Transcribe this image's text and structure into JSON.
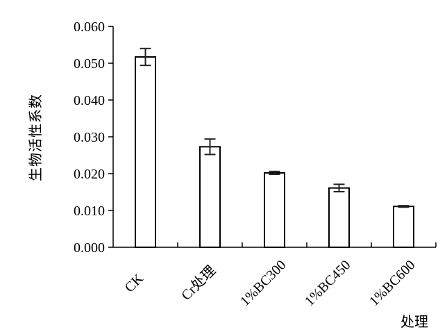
{
  "chart_data": {
    "type": "bar",
    "categories": [
      "CK",
      "Cr处理",
      "1%BC300",
      "1%BC450",
      "1%BC600"
    ],
    "values": [
      0.0517,
      0.0273,
      0.0202,
      0.0161,
      0.0111
    ],
    "errors": [
      0.0023,
      0.0021,
      0.0004,
      0.001,
      0.0002
    ],
    "xlabel": "处理",
    "ylabel": "生物活性系数",
    "ylim": [
      0,
      0.06
    ],
    "yticks": [
      "0.000",
      "0.010",
      "0.020",
      "0.030",
      "0.040",
      "0.050",
      "0.060"
    ],
    "grid": false,
    "legend": "none"
  }
}
